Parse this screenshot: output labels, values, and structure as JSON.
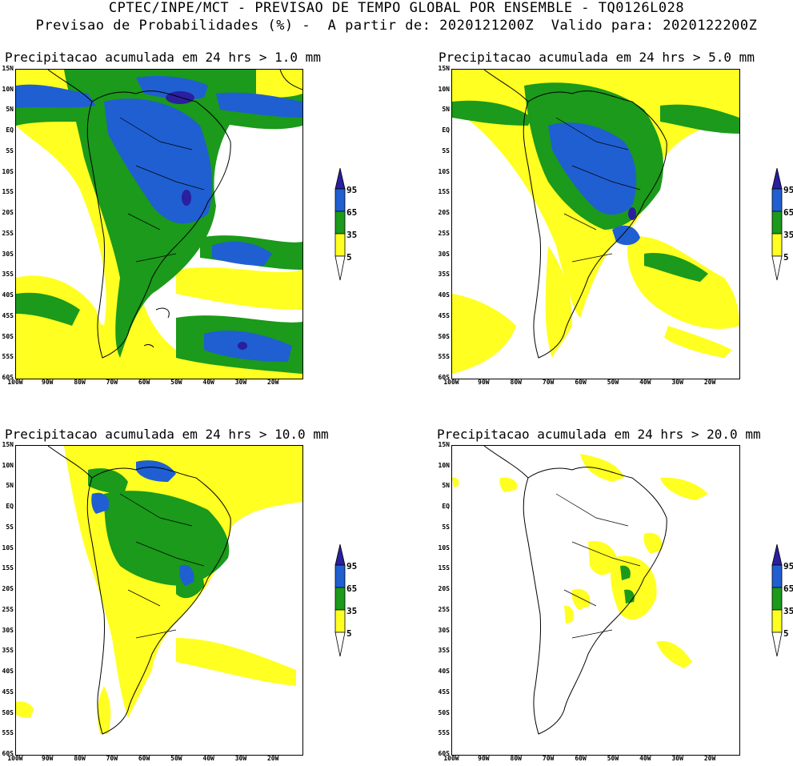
{
  "header": {
    "line1": "CPTEC/INPE/MCT - PREVISAO DE TEMPO GLOBAL POR ENSEMBLE - TQ0126L028",
    "line2": "Previsao de Probabilidades (%) -  A partir de: 2020121200Z  Valido para: 2020122200Z"
  },
  "panels": [
    {
      "title": "Precipitacao acumulada em 24 hrs > 1.0 mm"
    },
    {
      "title": "Precipitacao acumulada em 24 hrs > 5.0 mm"
    },
    {
      "title": "Precipitacao acumulada em 24 hrs > 10.0 mm"
    },
    {
      "title": "Precipitacao acumulada em 24 hrs > 20.0 mm"
    }
  ],
  "lat_labels": [
    "15N",
    "10N",
    "5N",
    "EQ",
    "5S",
    "10S",
    "15S",
    "20S",
    "25S",
    "30S",
    "35S",
    "40S",
    "45S",
    "50S",
    "55S",
    "60S"
  ],
  "lon_labels": [
    "100W",
    "90W",
    "80W",
    "70W",
    "60W",
    "50W",
    "40W",
    "30W",
    "20W"
  ],
  "colorbar": {
    "levels": [
      "95",
      "65",
      "35",
      "5"
    ],
    "colors": {
      "c95": "#2a1f9e",
      "c65": "#1f5fd1",
      "c35": "#1b9a1b",
      "c5": "#ffff22"
    }
  }
}
